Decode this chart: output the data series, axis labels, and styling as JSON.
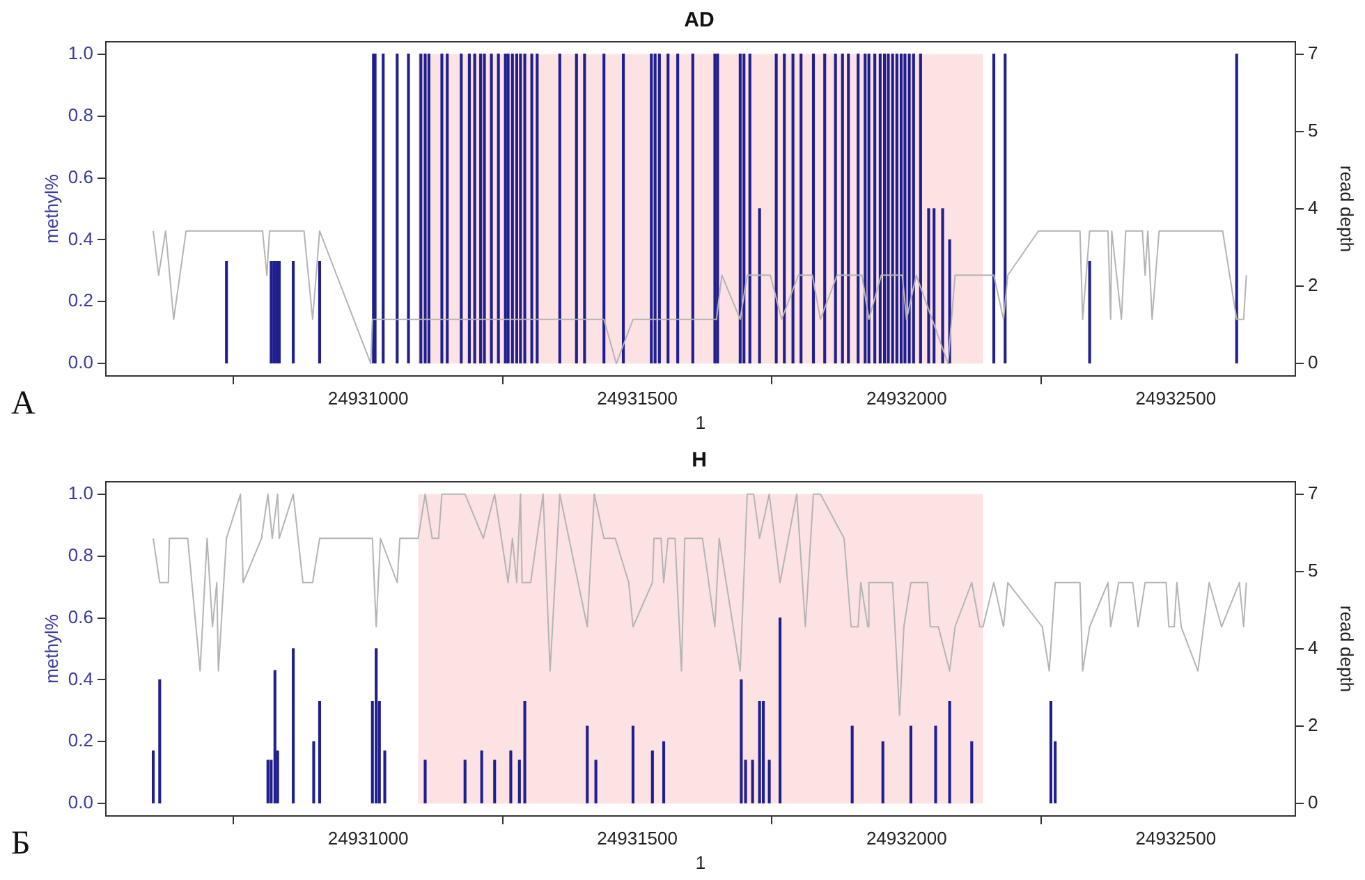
{
  "chart_data": [
    {
      "type": "bar",
      "title": "AD",
      "xlabel": "1",
      "ylabel": "methyl%",
      "y2label": "read depth",
      "annotations": [
        "А"
      ],
      "xlim": [
        24930513,
        24932722
      ],
      "xticks": [
        24931000,
        24931500,
        24932000,
        24932500
      ],
      "ylim": [
        -0.04,
        1.04
      ],
      "yticks": [
        {
          "value": 0,
          "label": "0.0"
        },
        {
          "value": 0.2,
          "label": "0.2"
        },
        {
          "value": 0.4,
          "label": "0.4"
        },
        {
          "value": 0.6,
          "label": "0.6"
        },
        {
          "value": 0.8,
          "label": "0.8"
        },
        {
          "value": 1,
          "label": "1.0"
        }
      ],
      "y2lim": [
        -0.28,
        7.28
      ],
      "y2ticks": [
        {
          "value": 0,
          "label": "0"
        },
        {
          "value": 1.75,
          "label": "2"
        },
        {
          "value": 3.5,
          "label": "4"
        },
        {
          "value": 5.25,
          "label": "5"
        },
        {
          "value": 7,
          "label": "7"
        }
      ],
      "bands": [
        {
          "axis": "x",
          "from": 24931093,
          "to": 24932142,
          "color": "#fde2e4"
        }
      ],
      "series": [
        {
          "color": "#1f1f8f",
          "x": [
            24930737,
            24930820,
            24930825,
            24930830,
            24930835,
            24930861,
            24930910,
            24931010,
            24931013,
            24931028,
            24931054,
            24931075,
            24931098,
            24931106,
            24931113,
            24931137,
            24931147,
            24931173,
            24931188,
            24931198,
            24931209,
            24931216,
            24931229,
            24931242,
            24931255,
            24931260,
            24931268,
            24931276,
            24931283,
            24931291,
            24931304,
            24931314,
            24931356,
            24931387,
            24931402,
            24931438,
            24931474,
            24931526,
            24931533,
            24931541,
            24931557,
            24931575,
            24931603,
            24931644,
            24931649,
            24931691,
            24931698,
            24931709,
            24931727,
            24931758,
            24931773,
            24931789,
            24931804,
            24931827,
            24931848,
            24931868,
            24931881,
            24931892,
            24931910,
            24931923,
            24931930,
            24931941,
            24931951,
            24931959,
            24931966,
            24931974,
            24931982,
            24931990,
            24931997,
            24932005,
            24932013,
            24932026,
            24932041,
            24932051,
            24932067,
            24932080,
            24932162,
            24932183,
            24932340,
            24932613
          ],
          "values": [
            0.33,
            0.33,
            0.33,
            0.33,
            0.33,
            0.33,
            0.33,
            1,
            1,
            1,
            1,
            1,
            1,
            1,
            1,
            1,
            1,
            1,
            1,
            1,
            1,
            1,
            1,
            1,
            1,
            1,
            1,
            1,
            1,
            1,
            1,
            1,
            1,
            1,
            1,
            1,
            1,
            1,
            1,
            1,
            1,
            1,
            1,
            1,
            1,
            1,
            1,
            1,
            0.5,
            1,
            1,
            1,
            1,
            1,
            1,
            1,
            1,
            1,
            1,
            1,
            1,
            1,
            1,
            1,
            1,
            1,
            1,
            1,
            1,
            1,
            1,
            1,
            0.5,
            0.5,
            0.5,
            0.4,
            1,
            1,
            0.33,
            1
          ]
        },
        {
          "type": "line",
          "axis": "y2",
          "color": "#b4b4b4",
          "x": [
            24930601,
            24930611,
            24930624,
            24930639,
            24930662,
            24930804,
            24930812,
            24930817,
            24930881,
            24930897,
            24930910,
            24931005,
            24931008,
            24931438,
            24931461,
            24931492,
            24931647,
            24931657,
            24931691,
            24931704,
            24931747,
            24931768,
            24931799,
            24931825,
            24931840,
            24931871,
            24931917,
            24931930,
            24931953,
            24931992,
            24932000,
            24932018,
            24932077,
            24932090,
            24932162,
            24932180,
            24932188,
            24932245,
            24932322,
            24932327,
            24932340,
            24932374,
            24932379,
            24932381,
            24932399,
            24932407,
            24932438,
            24932443,
            24932448,
            24932456,
            24932469,
            24932587,
            24932613,
            24932626,
            24932631
          ],
          "values": [
            3,
            2,
            3,
            1,
            3,
            3,
            2,
            3,
            3,
            1,
            3,
            0,
            1,
            1,
            0,
            1,
            1,
            2,
            1,
            2,
            2,
            1,
            2,
            2,
            1,
            2,
            2,
            1,
            2,
            2,
            1,
            2,
            0,
            2,
            2,
            1,
            2,
            3,
            3,
            1,
            3,
            3,
            1,
            3,
            1,
            3,
            3,
            2,
            3,
            1,
            3,
            3,
            1,
            1,
            2
          ]
        }
      ]
    },
    {
      "type": "bar",
      "title": "H",
      "xlabel": "1",
      "ylabel": "methyl%",
      "y2label": "read depth",
      "annotations": [
        "Б"
      ],
      "xlim": [
        24930513,
        24932722
      ],
      "xticks": [
        24931000,
        24931500,
        24932000,
        24932500
      ],
      "ylim": [
        -0.04,
        1.04
      ],
      "yticks": [
        {
          "value": 0,
          "label": "0.0"
        },
        {
          "value": 0.2,
          "label": "0.2"
        },
        {
          "value": 0.4,
          "label": "0.4"
        },
        {
          "value": 0.6,
          "label": "0.6"
        },
        {
          "value": 0.8,
          "label": "0.8"
        },
        {
          "value": 1,
          "label": "1.0"
        }
      ],
      "y2lim": [
        -0.28,
        7.28
      ],
      "y2ticks": [
        {
          "value": 0,
          "label": "0"
        },
        {
          "value": 1.75,
          "label": "2"
        },
        {
          "value": 3.5,
          "label": "4"
        },
        {
          "value": 5.25,
          "label": "5"
        },
        {
          "value": 7,
          "label": "7"
        }
      ],
      "bands": [
        {
          "axis": "x",
          "from": 24931093,
          "to": 24932142,
          "color": "#fde2e4"
        }
      ],
      "series": [
        {
          "color": "#1f1f8f",
          "x": [
            24930601,
            24930613,
            24930814,
            24930820,
            24930827,
            24930832,
            24930861,
            24930899,
            24930910,
            24931008,
            24931013,
            24931015,
            24931021,
            24931031,
            24931106,
            24931180,
            24931211,
            24931235,
            24931265,
            24931281,
            24931289,
            24931291,
            24931407,
            24931423,
            24931492,
            24931528,
            24931546,
            24931549,
            24931691,
            24931693,
            24931701,
            24931714,
            24931727,
            24931734,
            24931745,
            24931765,
            24931899,
            24931956,
            24932008,
            24932054,
            24932080,
            24932121,
            24932268,
            24932276
          ],
          "values": [
            0.17,
            0.4,
            0.14,
            0.14,
            0.43,
            0.17,
            0.5,
            0.2,
            0.33,
            0.33,
            null,
            0.5,
            0.33,
            0.17,
            0.14,
            0.14,
            0.17,
            0.14,
            0.17,
            0.14,
            null,
            0.33,
            0.25,
            0.14,
            0.25,
            0.17,
            null,
            0.2,
            null,
            0.4,
            0.14,
            0.14,
            0.33,
            0.33,
            0.14,
            0.6,
            0.25,
            0.2,
            0.25,
            0.25,
            0.33,
            0.2,
            0.33,
            0.2
          ]
        },
        {
          "type": "line",
          "axis": "y2",
          "color": "#b4b4b4",
          "x": [
            24930601,
            24930613,
            24930629,
            24930631,
            24930665,
            24930688,
            24930701,
            24930711,
            24930719,
            24930722,
            24930737,
            24930763,
            24930768,
            24930802,
            24930814,
            24930822,
            24930832,
            24930835,
            24930861,
            24930879,
            24930897,
            24930910,
            24931008,
            24931015,
            24931023,
            24931054,
            24931059,
            24931093,
            24931106,
            24931119,
            24931131,
            24931137,
            24931180,
            24931214,
            24931235,
            24931260,
            24931268,
            24931276,
            24931283,
            24931286,
            24931302,
            24931325,
            24931338,
            24931356,
            24931407,
            24931420,
            24931438,
            24931459,
            24931484,
            24931492,
            24931528,
            24931531,
            24931544,
            24931549,
            24931557,
            24931570,
            24931582,
            24931588,
            24931621,
            24931644,
            24931652,
            24931691,
            24931704,
            24931716,
            24931727,
            24931745,
            24931765,
            24931796,
            24931812,
            24931827,
            24931840,
            24931884,
            24931897,
            24931910,
            24931915,
            24931928,
            24931930,
            24931974,
            24931987,
            24931995,
            24932008,
            24932039,
            24932044,
            24932059,
            24932080,
            24932090,
            24932121,
            24932136,
            24932142,
            24932162,
            24932180,
            24932188,
            24932252,
            24932265,
            24932276,
            24932322,
            24932327,
            24932340,
            24932374,
            24932379,
            24932394,
            24932420,
            24932430,
            24932443,
            24932482,
            24932487,
            24932497,
            24932502,
            24932510,
            24932541,
            24932562,
            24932585,
            24932618,
            24932626,
            24932631
          ],
          "values": [
            6,
            5,
            5,
            6,
            6,
            3,
            6,
            4,
            5,
            3,
            6,
            7,
            5,
            6,
            7,
            6,
            7,
            6,
            7,
            5,
            5,
            6,
            6,
            4,
            6,
            5,
            6,
            6,
            7,
            6,
            6,
            7,
            7,
            6,
            7,
            5,
            6,
            5,
            7,
            5,
            5,
            7,
            3,
            7,
            4,
            7,
            6,
            6,
            5,
            4,
            5,
            6,
            6,
            5,
            6,
            6,
            3,
            6,
            6,
            4,
            6,
            3,
            7,
            7,
            6,
            7,
            5,
            7,
            4,
            7,
            7,
            6,
            4,
            4,
            5,
            4,
            5,
            5,
            2,
            4,
            5,
            5,
            4,
            4,
            3,
            4,
            5,
            4,
            4,
            5,
            4,
            5,
            4,
            3,
            5,
            5,
            3,
            4,
            5,
            4,
            5,
            5,
            4,
            5,
            5,
            4,
            4,
            5,
            4,
            3,
            5,
            4,
            5,
            4,
            5
          ]
        }
      ]
    }
  ]
}
